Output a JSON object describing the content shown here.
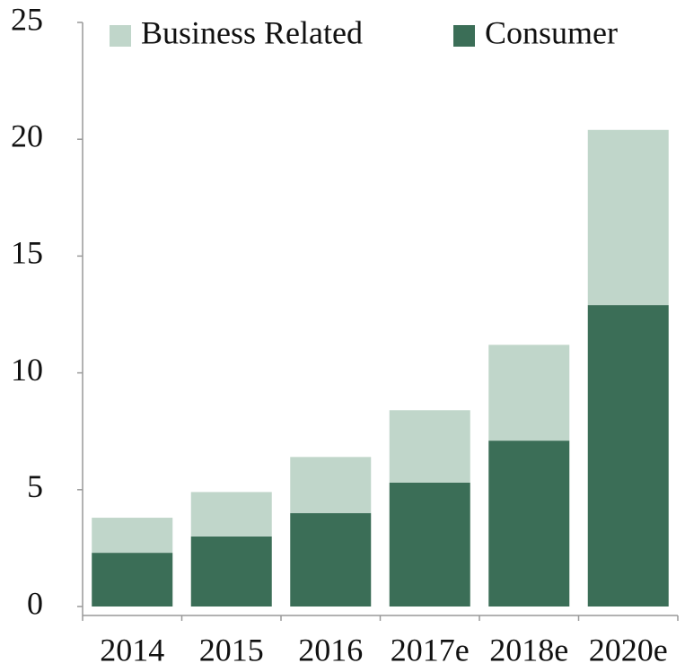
{
  "chart_data": {
    "type": "stacked_bar",
    "categories": [
      "2014",
      "2015",
      "2016",
      "2017e",
      "2018e",
      "2020e"
    ],
    "series": [
      {
        "name": "Consumer",
        "color": "#3b6e57",
        "values": [
          2.3,
          3.0,
          4.0,
          5.3,
          7.1,
          12.9
        ]
      },
      {
        "name": "Business Related",
        "color": "#c0d6ca",
        "values": [
          1.5,
          1.9,
          2.4,
          3.1,
          4.1,
          7.5
        ]
      }
    ],
    "ylim": [
      0,
      25
    ],
    "yticks": [
      0,
      5,
      10,
      15,
      20,
      25
    ],
    "legend": "top"
  }
}
